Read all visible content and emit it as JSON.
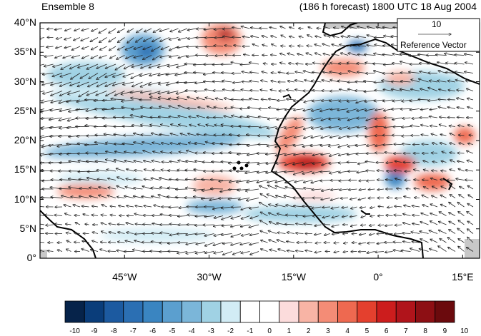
{
  "header": {
    "ensemble": "Ensemble 8",
    "forecast_info": "(186 h forecast) 1800 UTC 18 Aug 2004"
  },
  "map": {
    "lat_labels": [
      "40°N",
      "35°N",
      "30°N",
      "25°N",
      "20°N",
      "15°N",
      "10°N",
      "5°N",
      "0°"
    ],
    "lon_labels": [
      "45°W",
      "30°W",
      "15°W",
      "0°",
      "15°E"
    ],
    "lon_values": [
      -45,
      -30,
      -15,
      0,
      15
    ],
    "lat_values": [
      40,
      35,
      30,
      25,
      20,
      15,
      10,
      5,
      0
    ],
    "lon_range": [
      -60,
      18
    ],
    "lat_range": [
      0,
      40
    ]
  },
  "reference_vector": {
    "magnitude": "10",
    "label": "Reference Vector"
  },
  "colorbar": {
    "labels": [
      "-10",
      "-9",
      "-8",
      "-7",
      "-6",
      "-5",
      "-4",
      "-3",
      "-2",
      "-1",
      "0",
      "1",
      "2",
      "3",
      "4",
      "5",
      "6",
      "7",
      "8",
      "9",
      "10"
    ],
    "colors": [
      "#06234a",
      "#0a3d7a",
      "#1c5aa0",
      "#2b6fb3",
      "#3a85c1",
      "#5b9fcf",
      "#7bb6d9",
      "#a0d2e4",
      "#d2ecf5",
      "#ffffff",
      "#ffffff",
      "#fcdcdc",
      "#f8b4a5",
      "#f48c76",
      "#ee6950",
      "#e4402e",
      "#cc1d1d",
      "#b0141b",
      "#8d0f14",
      "#6b0a0d"
    ]
  }
}
